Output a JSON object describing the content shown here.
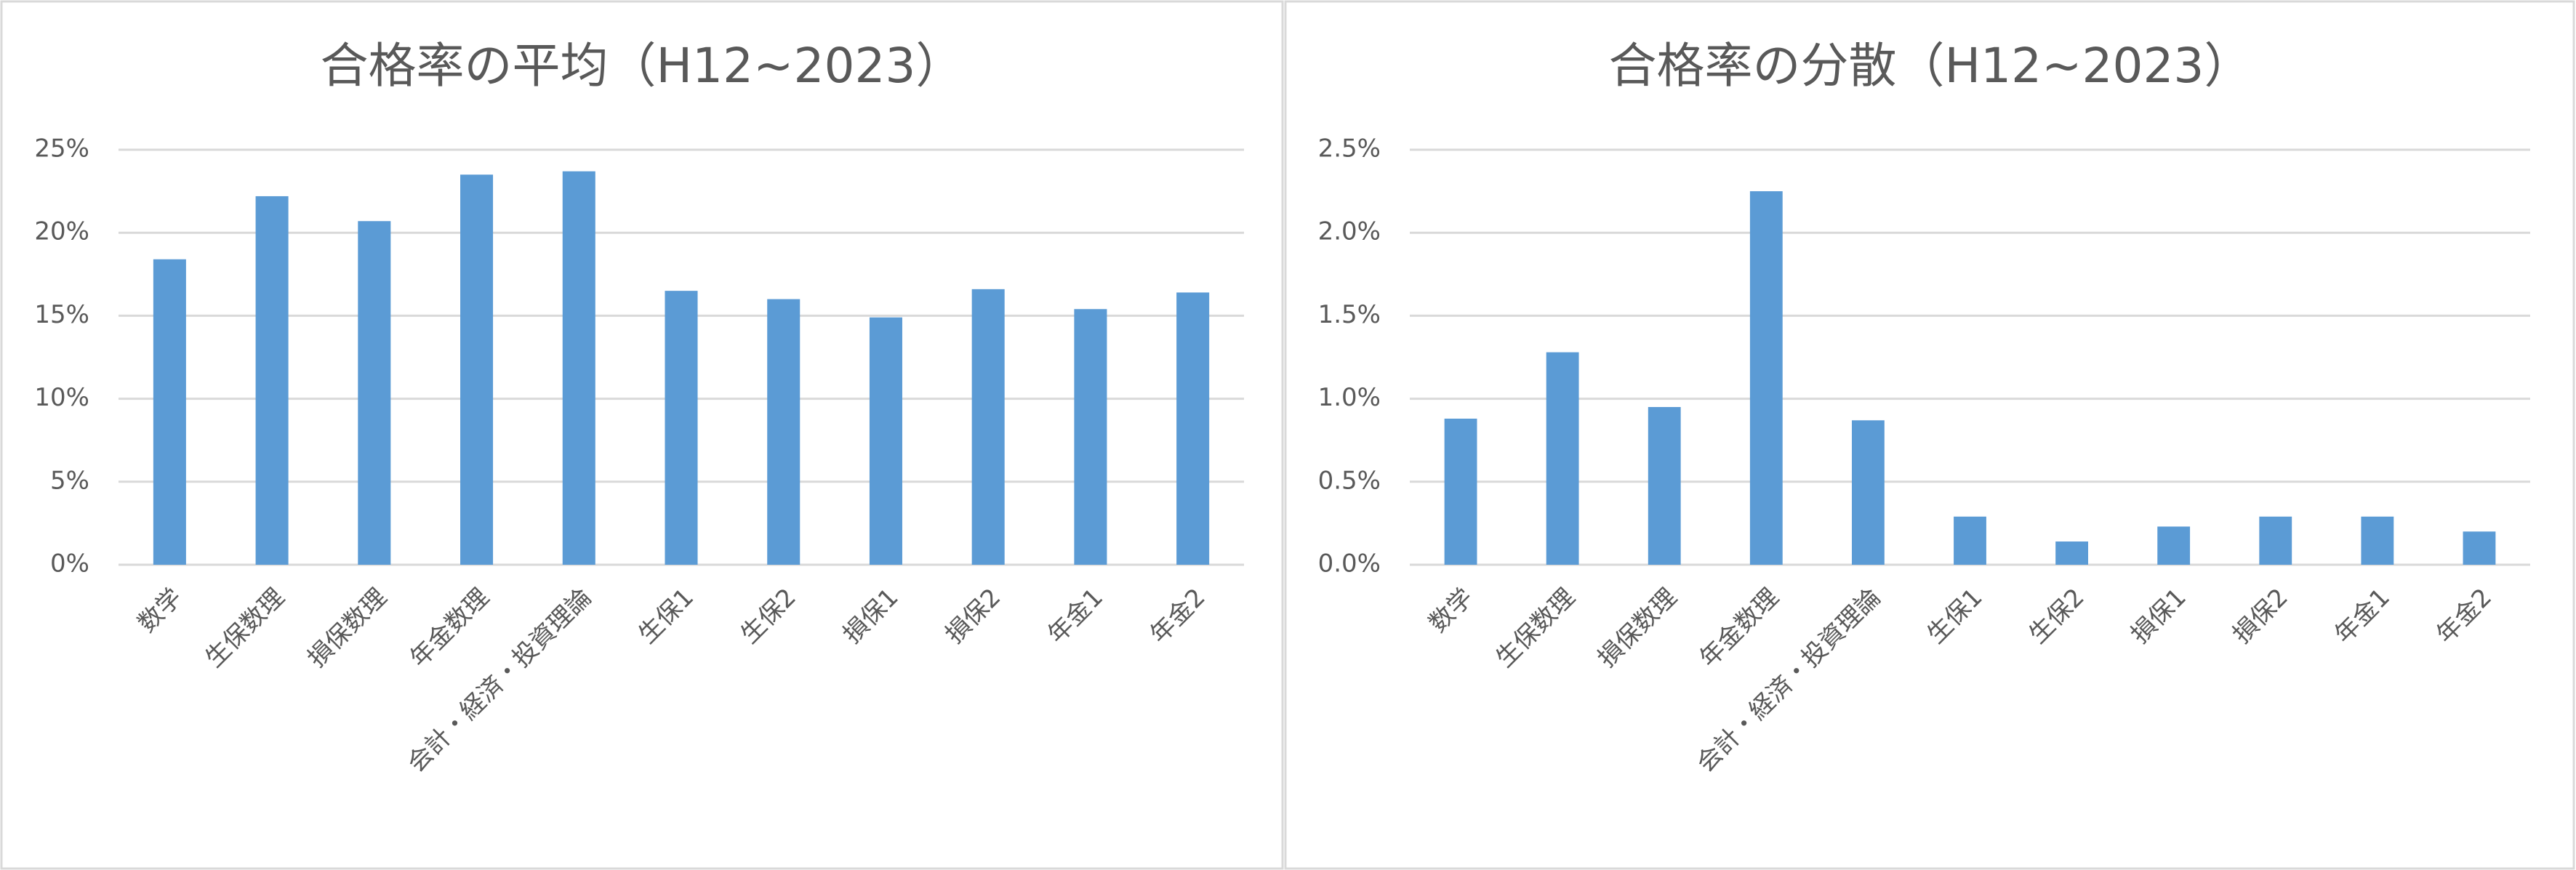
{
  "chart_data": [
    {
      "type": "bar",
      "title": "合格率の平均（H12~2023）",
      "categories": [
        "数学",
        "生保数理",
        "損保数理",
        "年金数理",
        "会計・経済・投資理論",
        "生保1",
        "生保2",
        "損保1",
        "損保2",
        "年金1",
        "年金2"
      ],
      "values": [
        18.4,
        22.2,
        20.7,
        23.5,
        23.7,
        16.5,
        16.0,
        14.9,
        16.6,
        15.4,
        16.4
      ],
      "color": "#5b9bd5",
      "ylim": [
        0,
        25
      ],
      "yticks": [
        {
          "value": 0,
          "label": "0%"
        },
        {
          "value": 5,
          "label": "5%"
        },
        {
          "value": 10,
          "label": "10%"
        },
        {
          "value": 15,
          "label": "15%"
        },
        {
          "value": 20,
          "label": "20%"
        },
        {
          "value": 25,
          "label": "25%"
        }
      ],
      "grid": true
    },
    {
      "type": "bar",
      "title": "合格率の分散（H12~2023）",
      "categories": [
        "数学",
        "生保数理",
        "損保数理",
        "年金数理",
        "会計・経済・投資理論",
        "生保1",
        "生保2",
        "損保1",
        "損保2",
        "年金1",
        "年金2"
      ],
      "values": [
        0.88,
        1.28,
        0.95,
        2.25,
        0.87,
        0.29,
        0.14,
        0.23,
        0.29,
        0.29,
        0.2
      ],
      "color": "#5b9bd5",
      "ylim": [
        0,
        2.5
      ],
      "yticks": [
        {
          "value": 0,
          "label": "0.0%"
        },
        {
          "value": 0.5,
          "label": "0.5%"
        },
        {
          "value": 1,
          "label": "1.0%"
        },
        {
          "value": 1.5,
          "label": "1.5%"
        },
        {
          "value": 2,
          "label": "2.0%"
        },
        {
          "value": 2.5,
          "label": "2.5%"
        }
      ],
      "grid": true
    }
  ]
}
